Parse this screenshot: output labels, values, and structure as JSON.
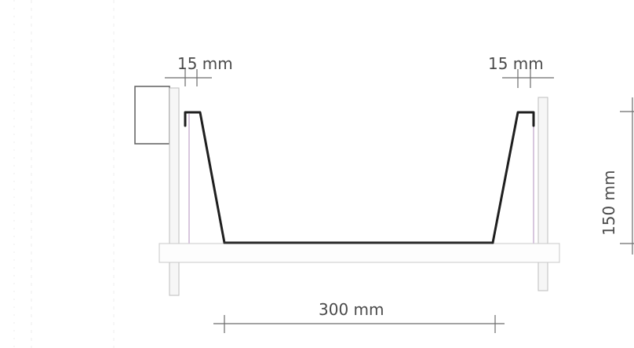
{
  "diagram": {
    "labels": {
      "top_left_width": "15 mm",
      "top_right_width": "15 mm",
      "bottom_width": "300 mm",
      "height": "150 mm"
    }
  }
}
